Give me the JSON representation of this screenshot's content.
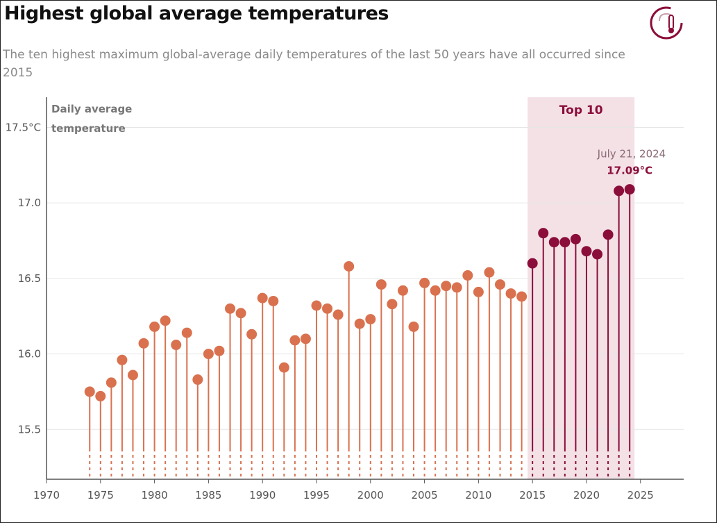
{
  "chart_data": {
    "type": "lollipop",
    "title": "Highest global average temperatures",
    "subtitle": "The ten highest maximum global-average daily temperatures of the last 50 years have all occurred since 2015",
    "ylabel": "Daily average temperature",
    "x": [
      1974,
      1975,
      1976,
      1977,
      1978,
      1979,
      1980,
      1981,
      1982,
      1983,
      1984,
      1985,
      1986,
      1987,
      1988,
      1989,
      1990,
      1991,
      1992,
      1993,
      1994,
      1995,
      1996,
      1997,
      1998,
      1999,
      2000,
      2001,
      2002,
      2003,
      2004,
      2005,
      2006,
      2007,
      2008,
      2009,
      2010,
      2011,
      2012,
      2013,
      2014,
      2015,
      2016,
      2017,
      2018,
      2019,
      2020,
      2021,
      2022,
      2023,
      2024
    ],
    "values": [
      15.75,
      15.72,
      15.81,
      15.96,
      15.86,
      16.07,
      16.18,
      16.22,
      16.06,
      16.14,
      15.83,
      16.0,
      16.02,
      16.3,
      16.27,
      16.13,
      16.37,
      16.35,
      15.91,
      16.09,
      16.1,
      16.32,
      16.3,
      16.26,
      16.58,
      16.2,
      16.23,
      16.46,
      16.33,
      16.42,
      16.18,
      16.47,
      16.42,
      16.45,
      16.44,
      16.52,
      16.41,
      16.54,
      16.46,
      16.4,
      16.38,
      16.6,
      16.8,
      16.74,
      16.74,
      16.76,
      16.68,
      16.66,
      16.79,
      17.08,
      17.09
    ],
    "color": "#d9714f",
    "highlight": {
      "label": "Top 10",
      "from": 2015,
      "to": 2024,
      "color": "#8b0d3a",
      "band_color": "#f3e1e6"
    },
    "annotation": {
      "x": 2024,
      "date": "July 21, 2024",
      "value_label": "17.09°C"
    },
    "xlim": [
      1970,
      2029
    ],
    "xticks": [
      1970,
      1975,
      1980,
      1985,
      1990,
      1995,
      2000,
      2005,
      2010,
      2015,
      2020,
      2025
    ],
    "ylim": [
      15.17,
      17.7
    ],
    "yticks": [
      {
        "value": 15.5,
        "label": "15.5"
      },
      {
        "value": 16.0,
        "label": "16.0"
      },
      16.5,
      {
        "value": 17.0,
        "label": "17.0"
      },
      {
        "value": 17.5,
        "label": "17.5°C"
      }
    ],
    "grid": true
  }
}
